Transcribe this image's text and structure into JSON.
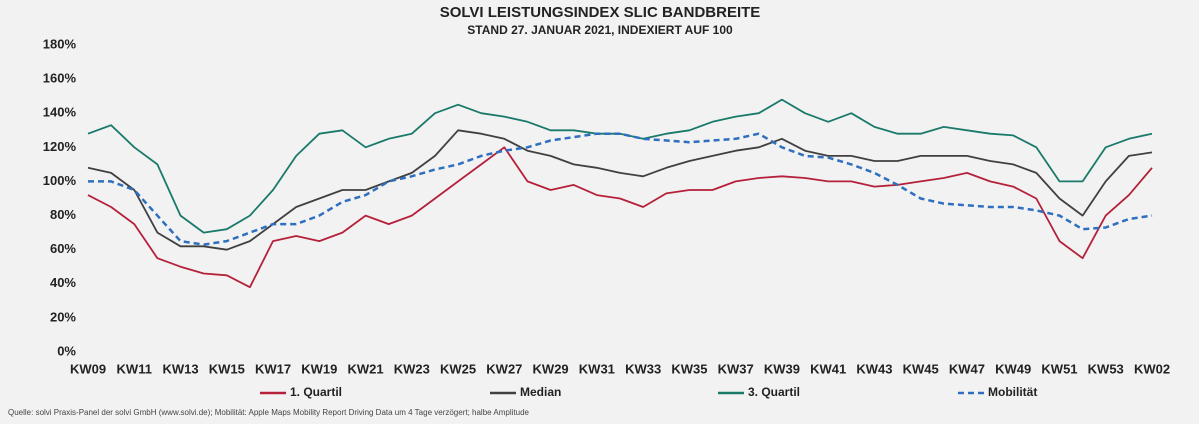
{
  "chart_data": {
    "type": "line",
    "title": "SOLVI LEISTUNGSINDEX SLIC BANDBREITE",
    "subtitle": "STAND 27. JANUAR 2021, INDEXIERT AUF 100",
    "source": "Quelle: solvi Praxis-Panel der solvi GmbH (www.solvi.de); Mobilität: Apple Maps Mobility Report Driving Data um 4 Tage verzögert; halbe    Amplitude",
    "categories": [
      "KW09",
      null,
      "KW11",
      null,
      "KW13",
      null,
      "KW15",
      null,
      "KW17",
      null,
      "KW19",
      null,
      "KW21",
      null,
      "KW23",
      null,
      "KW25",
      null,
      "KW27",
      null,
      "KW29",
      null,
      "KW31",
      null,
      "KW33",
      null,
      "KW35",
      null,
      "KW37",
      null,
      "KW39",
      null,
      "KW41",
      null,
      "KW43",
      null,
      "KW45",
      null,
      "KW47",
      null,
      "KW49",
      null,
      "KW51",
      null,
      "KW53",
      null,
      "KW02"
    ],
    "series": [
      {
        "name": "1. Quartil",
        "color": "#b5213a",
        "dashed": false,
        "values": [
          92,
          85,
          75,
          55,
          50,
          46,
          45,
          38,
          65,
          68,
          65,
          70,
          80,
          75,
          80,
          90,
          100,
          110,
          120,
          100,
          95,
          98,
          92,
          90,
          85,
          93,
          95,
          95,
          100,
          102,
          103,
          102,
          100,
          100,
          97,
          98,
          100,
          102,
          105,
          100,
          97,
          90,
          65,
          55,
          80,
          92,
          108
        ]
      },
      {
        "name": "Median",
        "color": "#404040",
        "dashed": false,
        "values": [
          108,
          105,
          95,
          70,
          62,
          62,
          60,
          65,
          75,
          85,
          90,
          95,
          95,
          100,
          105,
          115,
          130,
          128,
          125,
          118,
          115,
          110,
          108,
          105,
          103,
          108,
          112,
          115,
          118,
          120,
          125,
          118,
          115,
          115,
          112,
          112,
          115,
          115,
          115,
          112,
          110,
          105,
          90,
          80,
          100,
          115,
          117
        ]
      },
      {
        "name": "3. Quartil",
        "color": "#1a7a6a",
        "dashed": false,
        "values": [
          128,
          133,
          120,
          110,
          80,
          70,
          72,
          80,
          95,
          115,
          128,
          130,
          120,
          125,
          128,
          140,
          145,
          140,
          138,
          135,
          130,
          130,
          128,
          128,
          125,
          128,
          130,
          135,
          138,
          140,
          148,
          140,
          135,
          140,
          132,
          128,
          128,
          132,
          130,
          128,
          127,
          120,
          100,
          100,
          120,
          125,
          128
        ]
      },
      {
        "name": "Mobilität",
        "color": "#2f6fbf",
        "dashed": true,
        "values": [
          100,
          100,
          95,
          80,
          65,
          63,
          65,
          70,
          75,
          75,
          80,
          88,
          92,
          100,
          103,
          107,
          110,
          115,
          118,
          120,
          124,
          126,
          128,
          128,
          125,
          124,
          123,
          124,
          125,
          128,
          120,
          115,
          114,
          110,
          105,
          98,
          90,
          87,
          86,
          85,
          85,
          83,
          80,
          72,
          73,
          78,
          80
        ]
      }
    ],
    "ylim": [
      0,
      180
    ],
    "yticks": [
      {
        "value": 0,
        "label": "0%"
      },
      {
        "value": 20,
        "label": "20%"
      },
      {
        "value": 40,
        "label": "40%"
      },
      {
        "value": 60,
        "label": "60%"
      },
      {
        "value": 80,
        "label": "80%"
      },
      {
        "value": 100,
        "label": "100%"
      },
      {
        "value": 120,
        "label": "120%"
      },
      {
        "value": 140,
        "label": "140%"
      },
      {
        "value": 160,
        "label": "160%"
      },
      {
        "value": 180,
        "label": "180%"
      }
    ],
    "grid": false,
    "legend": "bottom"
  }
}
